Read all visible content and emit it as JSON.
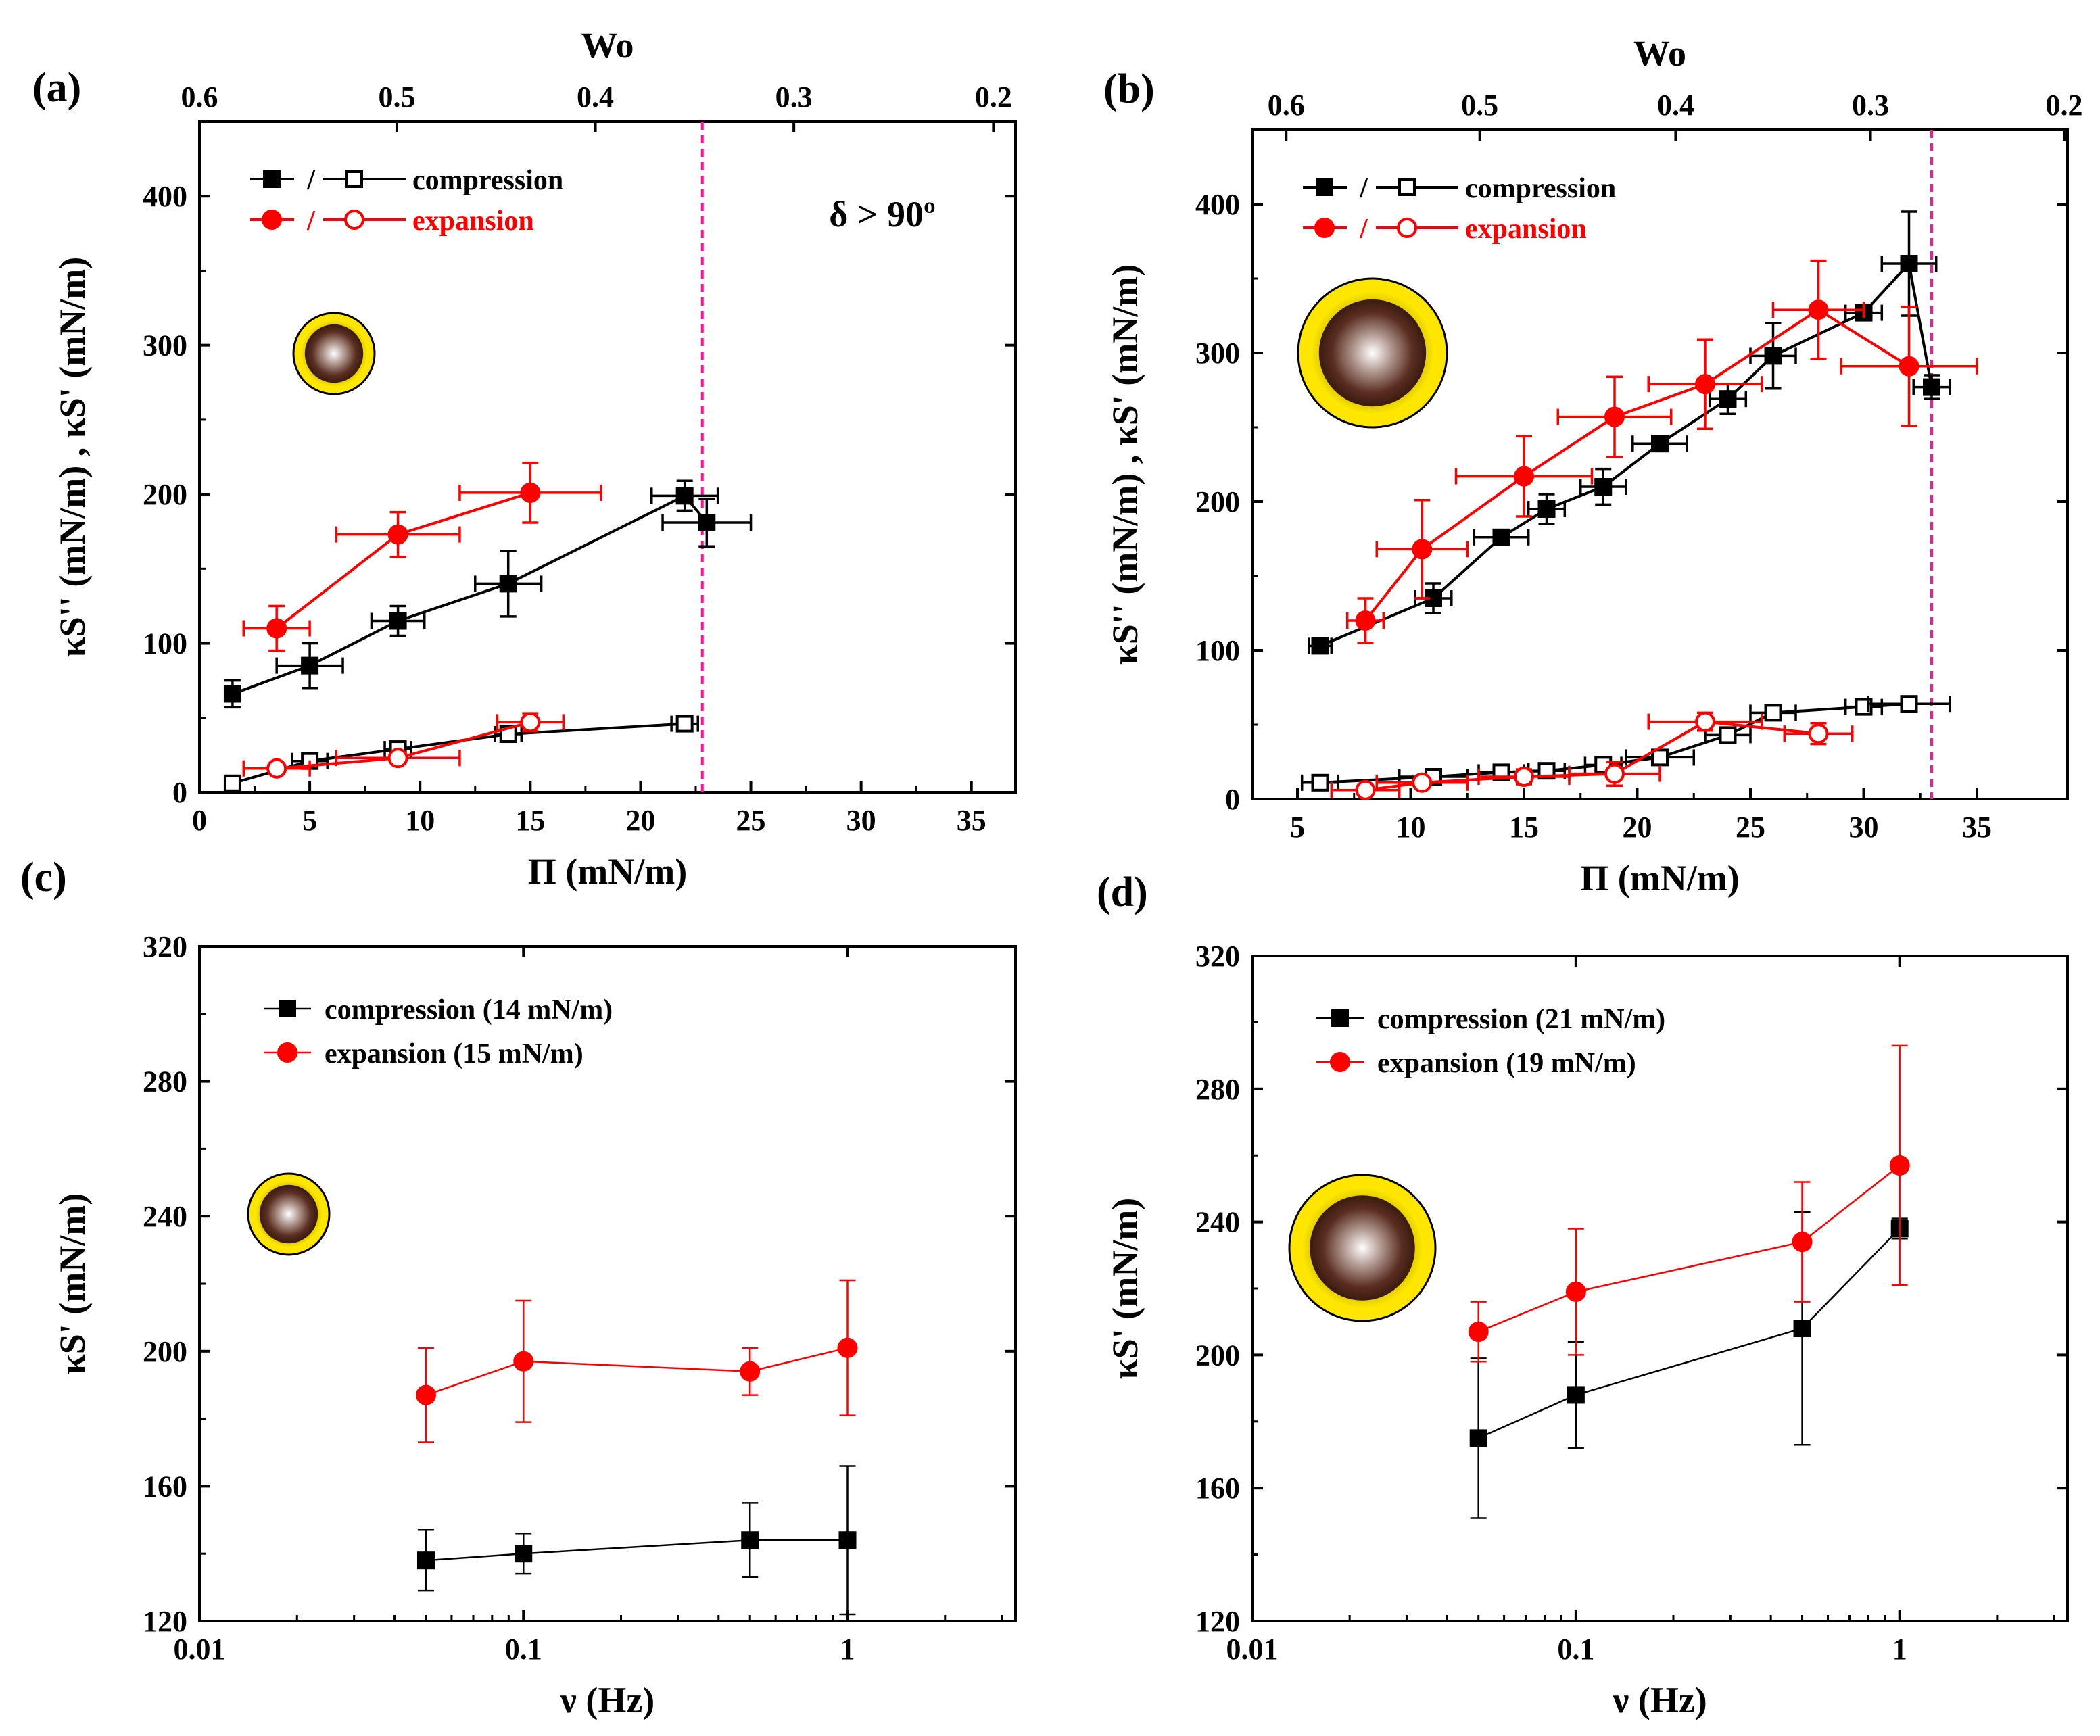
{
  "figure": {
    "colors": {
      "compression": "#000000",
      "expansion": "#ff0000",
      "threshold": "#ff1493"
    },
    "icon_name": "core-shell-particle-icon",
    "panels": [
      {
        "id": "a",
        "panel_label": "(a)",
        "top_axis_title": "Wo",
        "top_ticks": [
          {
            "label": "0.6",
            "pi": 0.0
          },
          {
            "label": "0.5",
            "pi": 8.95
          },
          {
            "label": "0.4",
            "pi": 17.95
          },
          {
            "label": "0.3",
            "pi": 26.95
          },
          {
            "label": "0.2",
            "pi": 36.0
          }
        ],
        "annotation": "δ > 90º",
        "legend": [
          "/",
          "compression",
          "/",
          "expansion"
        ],
        "threshold_x": 22.8
      },
      {
        "id": "b",
        "panel_label": "(b)",
        "top_axis_title": "Wo",
        "top_ticks": [
          {
            "label": "0.6",
            "pi": 4.5
          },
          {
            "label": "0.5",
            "pi": 13.05
          },
          {
            "label": "0.4",
            "pi": 21.7
          },
          {
            "label": "0.3",
            "pi": 30.3
          },
          {
            "label": "0.2",
            "pi": 38.85
          }
        ],
        "annotation": "",
        "legend": [
          "/",
          "compression",
          "/",
          "expansion"
        ],
        "threshold_x": 33.0
      },
      {
        "id": "c",
        "panel_label": "(c)",
        "legend": [
          "compression (14 mN/m)",
          "expansion (15 mN/m)"
        ]
      },
      {
        "id": "d",
        "panel_label": "(d)",
        "legend": [
          "compression (21 mN/m)",
          "expansion (19 mN/m)"
        ]
      }
    ]
  },
  "chart_data": [
    {
      "type": "line",
      "panel": "a",
      "xlabel": "Π (mN/m)",
      "ylabel": "κS'' (mN/m) , κS' (mN/m)",
      "xlim": [
        0,
        37
      ],
      "ylim": [
        0,
        450
      ],
      "xticks": [
        0,
        5,
        10,
        15,
        20,
        25,
        30,
        35
      ],
      "yticks": [
        0,
        100,
        200,
        300,
        400
      ],
      "series": [
        {
          "name": "compression κS'",
          "color": "#000000",
          "marker": "square-filled",
          "points": [
            [
              1.5,
              66,
              0,
              9
            ],
            [
              5,
              85,
              1.5,
              15
            ],
            [
              9,
              115,
              1.2,
              10
            ],
            [
              14,
              140,
              1.5,
              22
            ],
            [
              22,
              199,
              1.5,
              10
            ],
            [
              23,
              181,
              2.0,
              16
            ]
          ]
        },
        {
          "name": "compression κS''",
          "color": "#000000",
          "marker": "square-open",
          "points": [
            [
              1.5,
              6,
              0,
              4
            ],
            [
              5,
              21,
              0.8,
              3
            ],
            [
              9,
              29,
              0.6,
              3
            ],
            [
              14,
              39,
              0.6,
              4
            ],
            [
              22,
              46,
              0.6,
              4
            ]
          ]
        },
        {
          "name": "expansion κS'",
          "color": "#ff0000",
          "marker": "circle-filled",
          "points": [
            [
              3.5,
              110,
              1.5,
              15
            ],
            [
              9,
              173,
              2.8,
              15
            ],
            [
              15,
              201,
              3.2,
              20
            ]
          ]
        },
        {
          "name": "expansion κS''",
          "color": "#ff0000",
          "marker": "circle-open",
          "points": [
            [
              3.5,
              16,
              1.5,
              2
            ],
            [
              9,
              23,
              2.8,
              3
            ],
            [
              15,
              47,
              1.5,
              6
            ]
          ]
        }
      ]
    },
    {
      "type": "line",
      "panel": "b",
      "xlabel": "Π (mN/m)",
      "ylabel": "κS'' (mN/m) , κS' (mN/m)",
      "xlim": [
        3,
        39
      ],
      "ylim": [
        0,
        450
      ],
      "xticks": [
        5,
        10,
        15,
        20,
        25,
        30,
        35
      ],
      "yticks": [
        0,
        100,
        200,
        300,
        400
      ],
      "series": [
        {
          "name": "compression κS'",
          "color": "#000000",
          "marker": "square-filled",
          "points": [
            [
              6,
              103,
              0.5,
              3
            ],
            [
              11,
              135,
              0.8,
              10
            ],
            [
              14,
              176,
              1.2,
              3
            ],
            [
              16,
              195,
              0.8,
              10
            ],
            [
              18.5,
              210,
              1.0,
              12
            ],
            [
              21,
              239,
              1.2,
              3
            ],
            [
              24,
              269,
              0.8,
              10
            ],
            [
              26,
              298,
              1.0,
              22
            ],
            [
              30,
              327,
              0.8,
              3
            ],
            [
              32,
              360,
              1.2,
              35
            ],
            [
              33,
              277,
              0.8,
              8
            ]
          ]
        },
        {
          "name": "compression κS''",
          "color": "#000000",
          "marker": "square-open",
          "points": [
            [
              6,
              11,
              0.8,
              3
            ],
            [
              11,
              15,
              1.5,
              3
            ],
            [
              14,
              18,
              1.0,
              3
            ],
            [
              16,
              19,
              0.8,
              3
            ],
            [
              18.5,
              23,
              0.8,
              3
            ],
            [
              21,
              28,
              1.5,
              3
            ],
            [
              24,
              43,
              1.0,
              3
            ],
            [
              26,
              58,
              1.0,
              3
            ],
            [
              30,
              62,
              0.8,
              3
            ],
            [
              32,
              64,
              1.8,
              3
            ]
          ]
        },
        {
          "name": "expansion κS'",
          "color": "#ff0000",
          "marker": "circle-filled",
          "points": [
            [
              8,
              120,
              0.8,
              15
            ],
            [
              10.5,
              168,
              2.0,
              33
            ],
            [
              15,
              217,
              3.0,
              27
            ],
            [
              19,
              257,
              2.5,
              27
            ],
            [
              23,
              279,
              2.5,
              30
            ],
            [
              28,
              329,
              2.0,
              33
            ],
            [
              32,
              291,
              3.0,
              40
            ]
          ]
        },
        {
          "name": "expansion κS''",
          "color": "#ff0000",
          "marker": "circle-open",
          "points": [
            [
              8,
              6,
              1.5,
              3
            ],
            [
              10.5,
              11,
              2.0,
              3
            ],
            [
              15,
              15,
              2.0,
              5
            ],
            [
              19,
              17,
              2.0,
              8
            ],
            [
              23,
              52,
              2.5,
              6
            ],
            [
              28,
              44,
              1.5,
              7
            ]
          ]
        }
      ]
    },
    {
      "type": "line",
      "panel": "c",
      "xlabel": "ν (Hz)",
      "ylabel": "κS' (mN/m)",
      "xscale": "log",
      "xlim": [
        0.01,
        3.3
      ],
      "ylim": [
        120,
        320
      ],
      "xticks": [
        0.01,
        0.1,
        1
      ],
      "xticklabels": [
        "0.01",
        "0.1",
        "1"
      ],
      "yticks": [
        120,
        160,
        200,
        240,
        280,
        320
      ],
      "series": [
        {
          "name": "compression (14 mN/m)",
          "color": "#000000",
          "marker": "square-filled",
          "points": [
            [
              0.05,
              138,
              0,
              9
            ],
            [
              0.1,
              140,
              0,
              6
            ],
            [
              0.5,
              144,
              0,
              11
            ],
            [
              1,
              144,
              0,
              22
            ]
          ]
        },
        {
          "name": "expansion (15 mN/m)",
          "color": "#ff0000",
          "marker": "circle-filled",
          "points": [
            [
              0.05,
              187,
              0,
              14
            ],
            [
              0.1,
              197,
              0,
              18
            ],
            [
              0.5,
              194,
              0,
              7
            ],
            [
              1,
              201,
              0,
              20
            ]
          ]
        }
      ]
    },
    {
      "type": "line",
      "panel": "d",
      "xlabel": "ν (Hz)",
      "ylabel": "κS' (mN/m)",
      "xscale": "log",
      "xlim": [
        0.01,
        3.3
      ],
      "ylim": [
        120,
        320
      ],
      "xticks": [
        0.01,
        0.1,
        1
      ],
      "xticklabels": [
        "0.01",
        "0.1",
        "1"
      ],
      "yticks": [
        120,
        160,
        200,
        240,
        280,
        320
      ],
      "series": [
        {
          "name": "compression (21 mN/m)",
          "color": "#000000",
          "marker": "square-filled",
          "points": [
            [
              0.05,
              175,
              0,
              24
            ],
            [
              0.1,
              188,
              0,
              16
            ],
            [
              0.5,
              208,
              0,
              35
            ],
            [
              1,
              238,
              0,
              3
            ]
          ]
        },
        {
          "name": "expansion (19 mN/m)",
          "color": "#ff0000",
          "marker": "circle-filled",
          "points": [
            [
              0.05,
              207,
              0,
              9
            ],
            [
              0.1,
              219,
              0,
              19
            ],
            [
              0.5,
              234,
              0,
              18
            ],
            [
              1,
              257,
              0,
              36
            ]
          ]
        }
      ]
    }
  ]
}
